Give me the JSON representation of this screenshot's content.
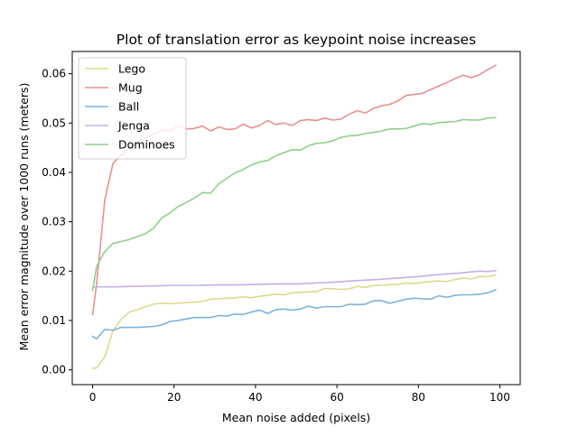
{
  "chart_data": {
    "type": "line",
    "title": "Plot of translation error as keypoint noise increases",
    "xlabel": "Mean noise added (pixels)",
    "ylabel": "Mean error magnitude over 1000 runs (meters)",
    "xlim": [
      -5,
      105
    ],
    "ylim": [
      -0.003,
      0.0645
    ],
    "xticks": [
      0,
      20,
      40,
      60,
      80,
      100
    ],
    "yticks": [
      0.0,
      0.01,
      0.02,
      0.03,
      0.04,
      0.05,
      0.06
    ],
    "ytick_labels": [
      "0.00",
      "0.01",
      "0.02",
      "0.03",
      "0.04",
      "0.05",
      "0.06"
    ],
    "grid": false,
    "legend_position": "upper-left",
    "series": [
      {
        "name": "Lego",
        "color": "#dbdb8d",
        "x": [
          0,
          1,
          3,
          5,
          7,
          9,
          11,
          13,
          15,
          17,
          19,
          21,
          23,
          25,
          27,
          29,
          31,
          33,
          35,
          37,
          39,
          41,
          43,
          45,
          47,
          49,
          51,
          53,
          55,
          57,
          59,
          61,
          63,
          65,
          67,
          69,
          71,
          73,
          75,
          77,
          79,
          81,
          83,
          85,
          87,
          89,
          91,
          93,
          95,
          97,
          99
        ],
        "y": [
          0.0003,
          0.0004,
          0.0026,
          0.0079,
          0.0102,
          0.0117,
          0.0122,
          0.0128,
          0.0133,
          0.0135,
          0.0134,
          0.0135,
          0.0136,
          0.0137,
          0.0139,
          0.0143,
          0.0144,
          0.0145,
          0.0146,
          0.0148,
          0.0146,
          0.0149,
          0.0151,
          0.0153,
          0.0152,
          0.0156,
          0.0157,
          0.0158,
          0.0158,
          0.0165,
          0.0164,
          0.0163,
          0.0164,
          0.0169,
          0.0167,
          0.0171,
          0.0171,
          0.0173,
          0.0173,
          0.0176,
          0.0175,
          0.0177,
          0.0179,
          0.018,
          0.0179,
          0.0183,
          0.0186,
          0.0184,
          0.0189,
          0.0189,
          0.0192
        ]
      },
      {
        "name": "Mug",
        "color": "#e8908e",
        "x": [
          0,
          1,
          3,
          5,
          7,
          9,
          11,
          13,
          15,
          17,
          19,
          21,
          23,
          25,
          27,
          29,
          31,
          33,
          35,
          37,
          39,
          41,
          43,
          45,
          47,
          49,
          51,
          53,
          55,
          57,
          59,
          61,
          63,
          65,
          67,
          69,
          71,
          73,
          75,
          77,
          79,
          81,
          83,
          85,
          87,
          89,
          91,
          93,
          95,
          97,
          99
        ],
        "y": [
          0.0112,
          0.0175,
          0.0345,
          0.0418,
          0.0436,
          0.0448,
          0.0462,
          0.047,
          0.0478,
          0.0486,
          0.0484,
          0.0494,
          0.0488,
          0.0489,
          0.0494,
          0.0484,
          0.0492,
          0.0487,
          0.0488,
          0.0498,
          0.049,
          0.0495,
          0.0505,
          0.0497,
          0.05,
          0.0495,
          0.0505,
          0.0507,
          0.0505,
          0.051,
          0.0506,
          0.0508,
          0.0518,
          0.0525,
          0.052,
          0.053,
          0.0535,
          0.0538,
          0.0545,
          0.0556,
          0.0558,
          0.056,
          0.0568,
          0.0575,
          0.0582,
          0.059,
          0.0597,
          0.0592,
          0.0598,
          0.0608,
          0.0617
        ]
      },
      {
        "name": "Ball",
        "color": "#7fb2d8",
        "x": [
          0,
          1,
          3,
          5,
          7,
          9,
          11,
          13,
          15,
          17,
          19,
          21,
          23,
          25,
          27,
          29,
          31,
          33,
          35,
          37,
          39,
          41,
          43,
          45,
          47,
          49,
          51,
          53,
          55,
          57,
          59,
          61,
          63,
          65,
          67,
          69,
          71,
          73,
          75,
          77,
          79,
          81,
          83,
          85,
          87,
          89,
          91,
          93,
          95,
          97,
          99
        ],
        "y": [
          0.0068,
          0.0063,
          0.0082,
          0.008,
          0.0086,
          0.0086,
          0.0086,
          0.0087,
          0.0088,
          0.0091,
          0.0098,
          0.01,
          0.0103,
          0.0106,
          0.0106,
          0.0106,
          0.011,
          0.0109,
          0.0113,
          0.0112,
          0.0117,
          0.0121,
          0.0114,
          0.0122,
          0.0123,
          0.0121,
          0.0123,
          0.0129,
          0.0125,
          0.0128,
          0.0128,
          0.0128,
          0.0133,
          0.0132,
          0.0133,
          0.014,
          0.014,
          0.0135,
          0.0139,
          0.0143,
          0.0145,
          0.0144,
          0.0143,
          0.015,
          0.0147,
          0.0151,
          0.0152,
          0.0152,
          0.0153,
          0.0156,
          0.0162
        ]
      },
      {
        "name": "Jenga",
        "color": "#c5b0e6",
        "x": [
          0,
          5,
          10,
          15,
          20,
          25,
          30,
          35,
          40,
          45,
          50,
          55,
          60,
          65,
          70,
          75,
          80,
          85,
          90,
          95,
          97,
          99
        ],
        "y": [
          0.0168,
          0.0168,
          0.0169,
          0.017,
          0.0171,
          0.0171,
          0.0172,
          0.0172,
          0.0173,
          0.0174,
          0.0174,
          0.0176,
          0.0178,
          0.0181,
          0.0183,
          0.0186,
          0.0189,
          0.0193,
          0.0196,
          0.02,
          0.0199,
          0.0201
        ]
      },
      {
        "name": "Dominoes",
        "color": "#8fcf8b",
        "x": [
          0,
          1,
          3,
          5,
          7,
          9,
          11,
          13,
          15,
          17,
          19,
          21,
          23,
          25,
          27,
          29,
          31,
          33,
          35,
          37,
          39,
          41,
          43,
          45,
          47,
          49,
          51,
          53,
          55,
          57,
          59,
          61,
          63,
          65,
          67,
          69,
          71,
          73,
          75,
          77,
          79,
          81,
          83,
          85,
          87,
          89,
          91,
          93,
          95,
          97,
          99
        ],
        "y": [
          0.016,
          0.021,
          0.024,
          0.0256,
          0.026,
          0.0264,
          0.027,
          0.0276,
          0.0287,
          0.0308,
          0.0318,
          0.0331,
          0.0339,
          0.0348,
          0.0359,
          0.0358,
          0.0377,
          0.0388,
          0.0399,
          0.0406,
          0.0415,
          0.0421,
          0.0424,
          0.0434,
          0.044,
          0.0446,
          0.0445,
          0.0454,
          0.0459,
          0.046,
          0.0464,
          0.0471,
          0.0474,
          0.0475,
          0.0479,
          0.0481,
          0.0484,
          0.0488,
          0.0488,
          0.0489,
          0.0494,
          0.0499,
          0.0497,
          0.0501,
          0.0502,
          0.0503,
          0.0507,
          0.0506,
          0.0506,
          0.051,
          0.0511
        ]
      }
    ]
  }
}
